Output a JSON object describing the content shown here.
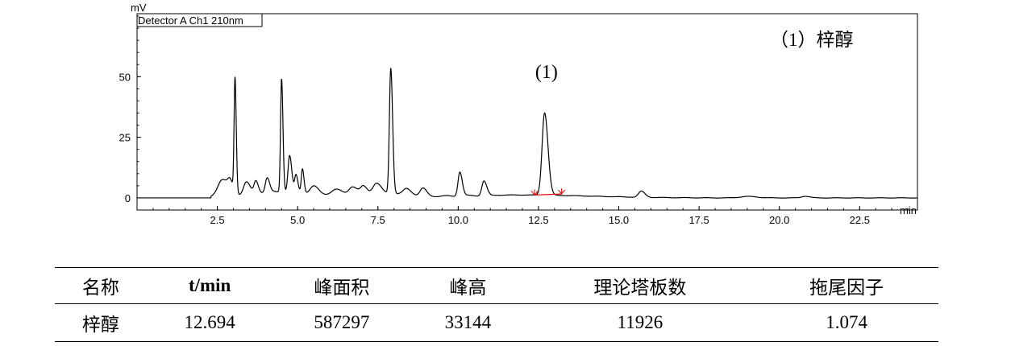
{
  "chart_data": {
    "type": "line",
    "detector_label": "Detector A Ch1 210nm",
    "ylabel": "mV",
    "xlabel": "min",
    "xlim": [
      0,
      24.3
    ],
    "ylim": [
      -5,
      76
    ],
    "x_ticks": [
      "2.5",
      "5.0",
      "7.5",
      "10.0",
      "12.5",
      "15.0",
      "17.5",
      "20.0",
      "22.5"
    ],
    "y_ticks": [
      "0",
      "25",
      "50"
    ],
    "legend_text": "（1）梓醇",
    "peak_label": "(1)",
    "peak_label_x": 12.7,
    "baseline_level": 0,
    "peaks": [
      {
        "rt": 2.65,
        "h": 7,
        "w": 0.2
      },
      {
        "rt": 2.9,
        "h": 4,
        "w": 0.1
      },
      {
        "rt": 3.05,
        "h": 47,
        "w": 0.04
      },
      {
        "rt": 3.4,
        "h": 5,
        "w": 0.12
      },
      {
        "rt": 3.7,
        "h": 5,
        "w": 0.08
      },
      {
        "rt": 4.05,
        "h": 6,
        "w": 0.08
      },
      {
        "rt": 4.5,
        "h": 47,
        "w": 0.045
      },
      {
        "rt": 4.75,
        "h": 15,
        "w": 0.07
      },
      {
        "rt": 4.95,
        "h": 7,
        "w": 0.06
      },
      {
        "rt": 5.15,
        "h": 10,
        "w": 0.05
      },
      {
        "rt": 5.5,
        "h": 3,
        "w": 0.15
      },
      {
        "rt": 6.2,
        "h": 2,
        "w": 0.2
      },
      {
        "rt": 6.7,
        "h": 3,
        "w": 0.15
      },
      {
        "rt": 7.05,
        "h": 3,
        "w": 0.12
      },
      {
        "rt": 7.45,
        "h": 4,
        "w": 0.15
      },
      {
        "rt": 7.9,
        "h": 52,
        "w": 0.06
      },
      {
        "rt": 8.4,
        "h": 2.5,
        "w": 0.15
      },
      {
        "rt": 8.9,
        "h": 3,
        "w": 0.12
      },
      {
        "rt": 10.05,
        "h": 10,
        "w": 0.08
      },
      {
        "rt": 10.8,
        "h": 6,
        "w": 0.09
      },
      {
        "rt": 12.69,
        "h": 34,
        "w": 0.11
      },
      {
        "rt": 15.7,
        "h": 2.5,
        "w": 0.12
      },
      {
        "rt": 19.0,
        "h": 0.6,
        "w": 0.3
      },
      {
        "rt": 20.8,
        "h": 0.7,
        "w": 0.15
      }
    ],
    "integration_baseline": {
      "x1": 12.38,
      "y1": 1.2,
      "x2": 13.22,
      "y2": 1.6
    }
  },
  "table": {
    "headers": [
      "名称",
      "t/min",
      "峰面积",
      "峰高",
      "理论塔板数",
      "拖尾因子"
    ],
    "row": [
      "梓醇",
      "12.694",
      "587297",
      "33144",
      "11926",
      "1.074"
    ]
  },
  "colors": {
    "trace": "#000000",
    "baseline": "#e00000"
  }
}
